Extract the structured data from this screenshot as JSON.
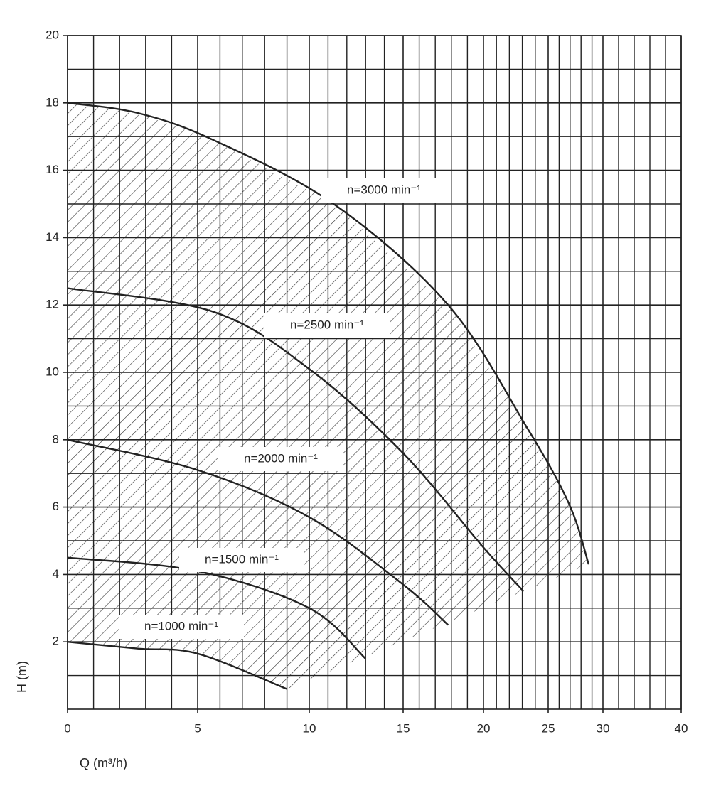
{
  "chart_data": {
    "type": "line",
    "x_label": "Q  (m³/h)",
    "y_label": "H  (m)",
    "xlim": [
      0,
      40
    ],
    "ylim": [
      0,
      20
    ],
    "xticks": [
      0,
      5,
      10,
      15,
      20,
      25,
      30,
      40
    ],
    "yticks": [
      2,
      4,
      6,
      8,
      10,
      12,
      14,
      16,
      18,
      20
    ],
    "x_minor_ticks": [
      1,
      2,
      3,
      4,
      6,
      7,
      8,
      9,
      11,
      12,
      13,
      14,
      16,
      17,
      18,
      19,
      21,
      22,
      23,
      24,
      26,
      27,
      28,
      29,
      32,
      34,
      36,
      38
    ],
    "y_minor_ticks": [
      1,
      3,
      5,
      7,
      9,
      11,
      13,
      15,
      17,
      19
    ],
    "grid": true,
    "color": "#222222",
    "series": [
      {
        "name": "n=3000 min⁻¹",
        "x": [
          0,
          2.7,
          5.7,
          11.3,
          17.8,
          23.3,
          26.9,
          28.7
        ],
        "values": [
          18,
          17.7,
          16.9,
          15.0,
          12.0,
          8.4,
          6.1,
          4.3
        ]
      },
      {
        "name": "n=2500 min⁻¹",
        "x": [
          0,
          5.7,
          10,
          15,
          20,
          23.1
        ],
        "values": [
          12.5,
          11.8,
          10.1,
          7.6,
          4.8,
          3.5
        ]
      },
      {
        "name": "n=2000 min⁻¹",
        "x": [
          0,
          5,
          10,
          15,
          17.8
        ],
        "values": [
          8,
          7.1,
          5.7,
          3.7,
          2.5
        ]
      },
      {
        "name": "n=1500 min⁻¹",
        "x": [
          0,
          5,
          10,
          13.0
        ],
        "values": [
          4.5,
          4.1,
          3.0,
          1.5
        ]
      },
      {
        "name": "n=1000 min⁻¹",
        "x": [
          0,
          2.7,
          5,
          9.0
        ],
        "values": [
          2,
          1.8,
          1.65,
          0.6
        ]
      }
    ]
  }
}
